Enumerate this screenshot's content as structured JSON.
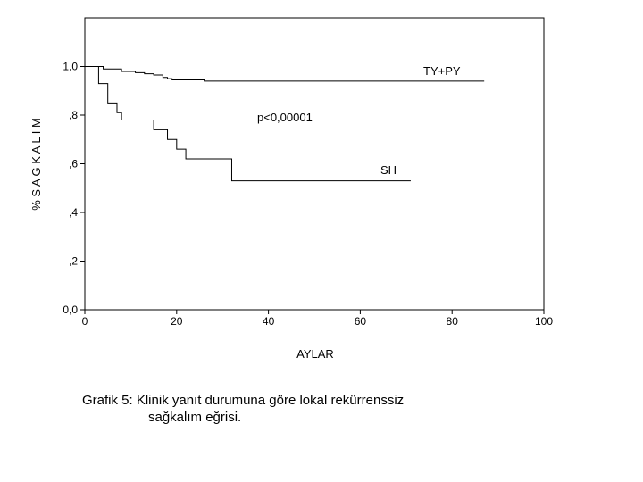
{
  "chart_data": {
    "type": "line",
    "step": true,
    "xlabel": "AYLAR",
    "ylabel": "% S A G K A L I M",
    "xlim": [
      0,
      100
    ],
    "ylim": [
      0,
      1.2
    ],
    "x_ticks": [
      0,
      20,
      40,
      60,
      80,
      100
    ],
    "x_tick_labels": [
      "0",
      "20",
      "40",
      "60",
      "80",
      "100"
    ],
    "y_ticks": [
      0,
      0.2,
      0.4,
      0.6,
      0.8,
      1.0
    ],
    "y_tick_labels": [
      "0,0",
      ",2",
      ",4",
      ",6",
      ",8",
      "1,0"
    ],
    "grid": false,
    "annotation": "p<0,00001",
    "series": [
      {
        "name": "TY+PY",
        "x": [
          0,
          4,
          8,
          11,
          13,
          15,
          17,
          18,
          19,
          26,
          87
        ],
        "y": [
          1.0,
          0.99,
          0.98,
          0.975,
          0.97,
          0.965,
          0.955,
          0.95,
          0.945,
          0.94,
          0.94
        ]
      },
      {
        "name": "SH",
        "x": [
          0,
          3,
          5,
          7,
          8,
          9,
          15,
          18,
          20,
          22,
          32,
          71
        ],
        "y": [
          1.0,
          0.93,
          0.85,
          0.81,
          0.78,
          0.78,
          0.74,
          0.7,
          0.66,
          0.62,
          0.53,
          0.53
        ]
      }
    ]
  },
  "caption": {
    "line1": "Grafik 5: Klinik yanıt durumuna göre lokal rekürrenssiz",
    "line2": "sağkalım eğrisi."
  }
}
